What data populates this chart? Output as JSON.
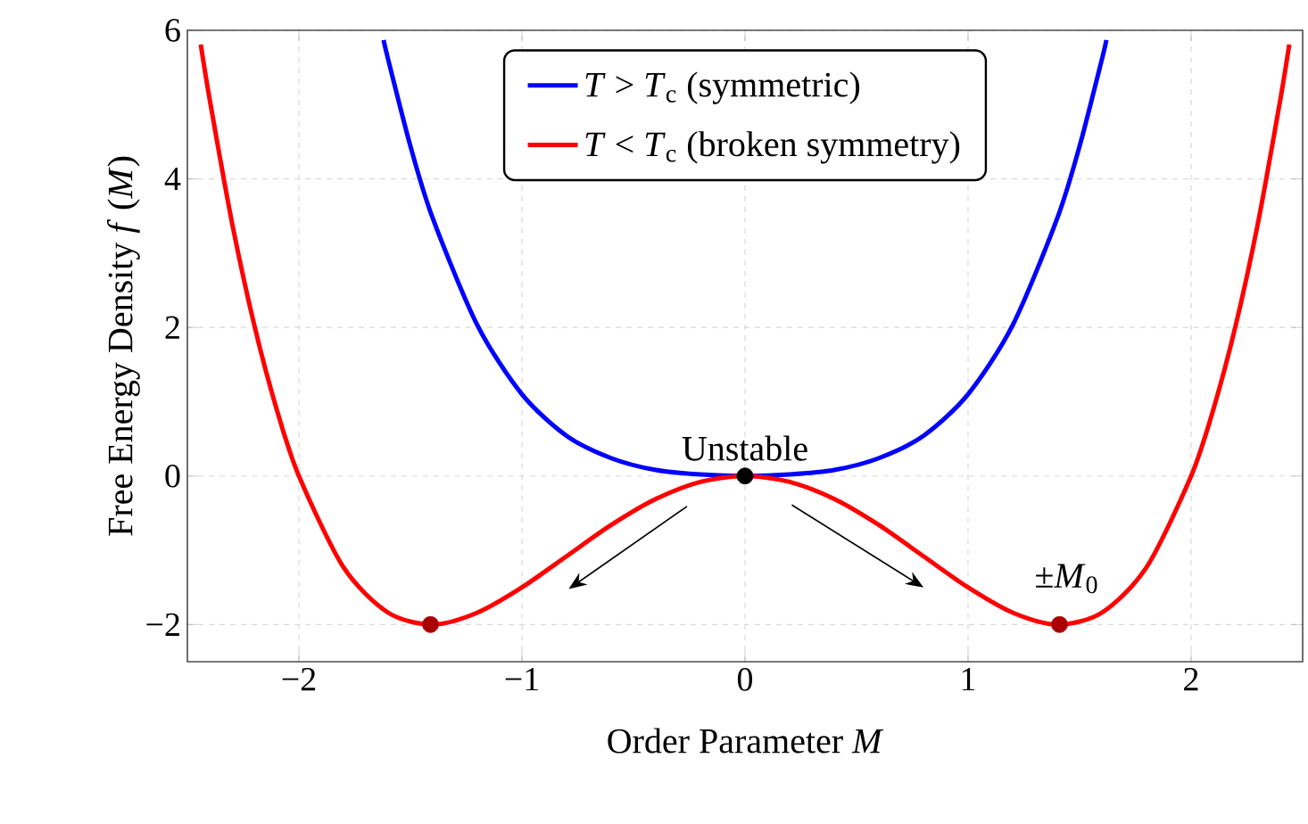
{
  "chart_data": {
    "type": "line",
    "xlabel": "Order Parameter *M*",
    "ylabel": "Free Energy Density *f* (*M*)",
    "xlim": [
      -2.5,
      2.5
    ],
    "ylim": [
      -2.5,
      6
    ],
    "xticks": [
      {
        "value": -2,
        "label": "−2"
      },
      {
        "value": -1,
        "label": "−1"
      },
      0,
      1,
      2
    ],
    "yticks": [
      {
        "value": -2,
        "label": "−2"
      },
      0,
      2,
      4,
      6
    ],
    "grid": true,
    "legend": "top",
    "marker": "none",
    "line_style": "solid",
    "series": [
      {
        "name": "*T* > *T*$_{c}$ (symmetric)",
        "color": "#0000ff",
        "x": [
          -1.62,
          -1.6,
          -1.5,
          -1.4,
          -1.2,
          -1.0,
          -0.8,
          -0.6,
          -0.4,
          -0.2,
          0,
          0.2,
          0.4,
          0.6,
          0.8,
          1.0,
          1.2,
          1.4,
          1.5,
          1.6,
          1.62
        ],
        "values": [
          5.87,
          5.61,
          4.44,
          3.47,
          2.03,
          1.1,
          0.54,
          0.24,
          0.08,
          0.02,
          0,
          0.02,
          0.08,
          0.24,
          0.54,
          1.1,
          2.03,
          3.47,
          4.44,
          5.61,
          5.87
        ]
      },
      {
        "name": "*T* < *T*$_{c}$ (broken symmetry)",
        "color": "#ff0000",
        "x": [
          -2.44,
          -2.4,
          -2.3,
          -2.2,
          -2.1,
          -2.0,
          -1.8,
          -1.6,
          -1.4,
          -1.2,
          -1.0,
          -0.8,
          -0.6,
          -0.4,
          -0.2,
          0,
          0.2,
          0.4,
          0.6,
          0.8,
          1.0,
          1.2,
          1.4,
          1.6,
          1.8,
          2.0,
          2.1,
          2.2,
          2.3,
          2.4,
          2.44
        ],
        "values": [
          5.81,
          5.07,
          3.41,
          2.03,
          0.9,
          0,
          -1.23,
          -1.84,
          -2.0,
          -1.84,
          -1.5,
          -1.08,
          -0.66,
          -0.31,
          -0.08,
          0,
          -0.08,
          -0.31,
          -0.66,
          -1.08,
          -1.5,
          -1.84,
          -2.0,
          -1.84,
          -1.23,
          0,
          0.9,
          2.03,
          3.41,
          5.07,
          5.81
        ]
      },
      {
        "type": "scatter",
        "marker": "circle",
        "color": "#000000",
        "x": [
          0
        ],
        "values": [
          0
        ]
      },
      {
        "type": "scatter",
        "marker": "circle",
        "color": "#aa0000",
        "x": [
          -1.41,
          1.41
        ],
        "values": [
          -2,
          -2
        ]
      }
    ],
    "annotations": [
      {
        "text": "Unstable",
        "x": 0,
        "y": 0
      },
      {
        "text": "±*M*$_{0}$",
        "x": 1.41,
        "y": -2
      }
    ]
  }
}
